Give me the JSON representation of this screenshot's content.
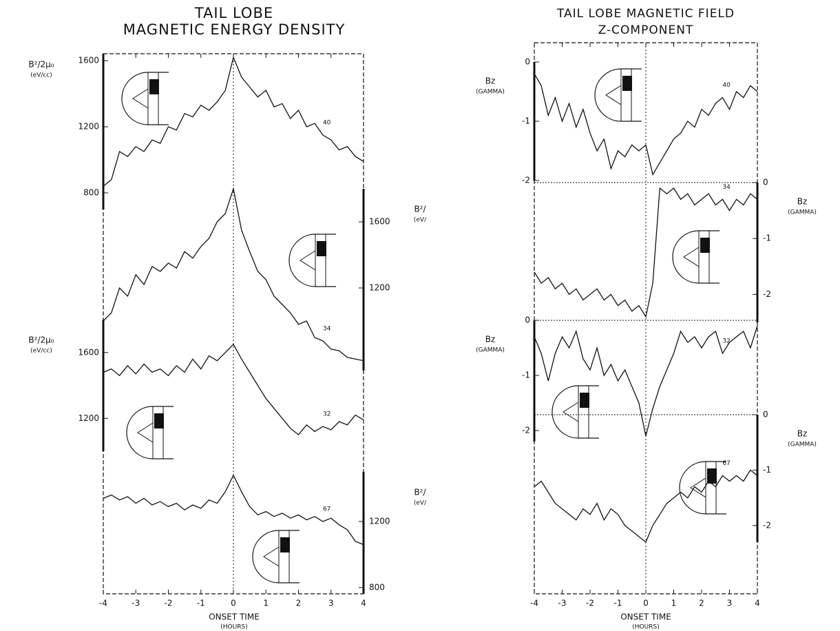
{
  "chart_data": [
    {
      "type": "line",
      "title": "TAIL LOBE",
      "subtitle": "MAGNETIC ENERGY DENSITY",
      "xlabel": "ONSET TIME",
      "xunits": "(HOURS)",
      "xlim": [
        -4,
        4
      ],
      "xticks": [
        -4,
        -3,
        -2,
        -1,
        0,
        1,
        2,
        3,
        4
      ],
      "x": [
        -4,
        -3.75,
        -3.5,
        -3.25,
        -3,
        -2.75,
        -2.5,
        -2.25,
        -2,
        -1.75,
        -1.5,
        -1.25,
        -1,
        -0.75,
        -0.5,
        -0.25,
        0,
        0.25,
        0.5,
        0.75,
        1,
        1.25,
        1.5,
        1.75,
        2,
        2.25,
        2.5,
        2.75,
        3,
        3.25,
        3.5,
        3.75,
        4
      ],
      "color": "#111111",
      "panels": [
        {
          "name": "40",
          "ylabel": "B²/2μ₀",
          "yunits": "(eV/cc)",
          "axis": "left",
          "ylim": [
            700,
            1700
          ],
          "yticks": [
            800,
            1200,
            1600
          ],
          "values": [
            840,
            880,
            1050,
            1020,
            1080,
            1050,
            1120,
            1100,
            1200,
            1180,
            1280,
            1260,
            1330,
            1300,
            1350,
            1420,
            1620,
            1500,
            1440,
            1380,
            1420,
            1320,
            1340,
            1250,
            1300,
            1200,
            1220,
            1150,
            1120,
            1060,
            1080,
            1020,
            990
          ]
        },
        {
          "name": "34",
          "ylabel": "B²/",
          "yunits": "(eV/",
          "axis": "right",
          "ylim": [
            700,
            1800
          ],
          "yticks": [
            1200,
            1600
          ],
          "values": [
            1000,
            1050,
            1200,
            1150,
            1280,
            1220,
            1330,
            1300,
            1350,
            1320,
            1420,
            1380,
            1450,
            1500,
            1600,
            1650,
            1800,
            1550,
            1420,
            1300,
            1250,
            1150,
            1100,
            1050,
            980,
            1000,
            900,
            880,
            830,
            820,
            780,
            770,
            760
          ]
        },
        {
          "name": "32",
          "ylabel": "B²/2μ₀",
          "yunits": "(eV/cc)",
          "axis": "left",
          "ylim": [
            1000,
            1800
          ],
          "yticks": [
            1200,
            1600
          ],
          "values": [
            1480,
            1500,
            1460,
            1520,
            1470,
            1530,
            1480,
            1500,
            1460,
            1520,
            1480,
            1560,
            1500,
            1580,
            1550,
            1600,
            1650,
            1560,
            1480,
            1400,
            1320,
            1260,
            1200,
            1140,
            1100,
            1160,
            1120,
            1150,
            1130,
            1180,
            1160,
            1220,
            1190
          ]
        },
        {
          "name": "67",
          "ylabel": "B²/",
          "yunits": "(eV/",
          "axis": "right",
          "ylim": [
            700,
            1500
          ],
          "yticks": [
            800,
            1200
          ],
          "values": [
            1340,
            1360,
            1330,
            1350,
            1310,
            1340,
            1300,
            1320,
            1290,
            1310,
            1270,
            1300,
            1280,
            1330,
            1310,
            1380,
            1480,
            1380,
            1290,
            1240,
            1260,
            1230,
            1250,
            1220,
            1240,
            1210,
            1230,
            1200,
            1220,
            1180,
            1150,
            1080,
            1060
          ]
        }
      ]
    },
    {
      "type": "line",
      "title": "TAIL LOBE MAGNETIC FIELD",
      "subtitle": "Z-COMPONENT",
      "xlabel": "ONSET TIME",
      "xunits": "(HOURS)",
      "xlim": [
        -4,
        4
      ],
      "xticks": [
        -4,
        -3,
        -2,
        -1,
        0,
        1,
        2,
        3,
        4
      ],
      "x": [
        -4,
        -3.75,
        -3.5,
        -3.25,
        -3,
        -2.75,
        -2.5,
        -2.25,
        -2,
        -1.75,
        -1.5,
        -1.25,
        -1,
        -0.75,
        -0.5,
        -0.25,
        0,
        0.25,
        0.5,
        0.75,
        1,
        1.25,
        1.5,
        1.75,
        2,
        2.25,
        2.5,
        2.75,
        3,
        3.25,
        3.5,
        3.75,
        4
      ],
      "color": "#111111",
      "panels": [
        {
          "name": "40",
          "ylabel": "Bz",
          "yunits": "(GAMMA)",
          "axis": "left",
          "ylim": [
            -2,
            0
          ],
          "yticks": [
            0,
            -1,
            -2
          ],
          "values": [
            -0.2,
            -0.4,
            -0.9,
            -0.6,
            -1.0,
            -0.7,
            -1.1,
            -0.8,
            -1.2,
            -1.5,
            -1.3,
            -1.8,
            -1.5,
            -1.6,
            -1.4,
            -1.5,
            -1.4,
            -1.9,
            -1.7,
            -1.5,
            -1.3,
            -1.2,
            -1.0,
            -1.1,
            -0.8,
            -0.9,
            -0.7,
            -0.6,
            -0.8,
            -0.5,
            -0.6,
            -0.4,
            -0.5
          ]
        },
        {
          "name": "34",
          "ylabel": "Bz",
          "yunits": "(GAMMA)",
          "axis": "right",
          "ylim": [
            -2.5,
            0
          ],
          "yticks": [
            0,
            -1,
            -2
          ],
          "values": [
            -1.6,
            -1.8,
            -1.7,
            -1.9,
            -1.8,
            -2.0,
            -1.9,
            -2.1,
            -2.0,
            -1.9,
            -2.1,
            -2.0,
            -2.2,
            -2.1,
            -2.3,
            -2.2,
            -2.4,
            -1.8,
            -0.1,
            -0.2,
            -0.1,
            -0.3,
            -0.2,
            -0.4,
            -0.3,
            -0.2,
            -0.4,
            -0.3,
            -0.5,
            -0.3,
            -0.4,
            -0.2,
            -0.3
          ]
        },
        {
          "name": "32",
          "ylabel": "Bz",
          "yunits": "(GAMMA)",
          "axis": "left",
          "ylim": [
            -2.2,
            0
          ],
          "yticks": [
            0,
            -1,
            -2
          ],
          "values": [
            -0.3,
            -0.6,
            -1.1,
            -0.6,
            -0.3,
            -0.5,
            -0.2,
            -0.7,
            -0.9,
            -0.5,
            -1.0,
            -0.8,
            -1.1,
            -0.9,
            -1.2,
            -1.5,
            -2.1,
            -1.6,
            -1.2,
            -0.9,
            -0.6,
            -0.2,
            -0.4,
            -0.3,
            -0.5,
            -0.3,
            -0.2,
            -0.6,
            -0.4,
            -0.3,
            -0.2,
            -0.5,
            -0.1
          ]
        },
        {
          "name": "67",
          "ylabel": "Bz",
          "yunits": "(GAMMA)",
          "axis": "right",
          "ylim": [
            -2.3,
            0
          ],
          "yticks": [
            0,
            -1,
            -2
          ],
          "values": [
            -1.3,
            -1.2,
            -1.4,
            -1.6,
            -1.7,
            -1.8,
            -1.9,
            -1.7,
            -1.8,
            -1.6,
            -1.9,
            -1.7,
            -1.8,
            -2.0,
            -2.1,
            -2.2,
            -2.3,
            -2.0,
            -1.8,
            -1.6,
            -1.5,
            -1.4,
            -1.5,
            -1.3,
            -1.4,
            -1.2,
            -1.3,
            -1.1,
            -1.2,
            -1.1,
            -1.2,
            -1.0,
            -1.1
          ]
        }
      ]
    }
  ]
}
